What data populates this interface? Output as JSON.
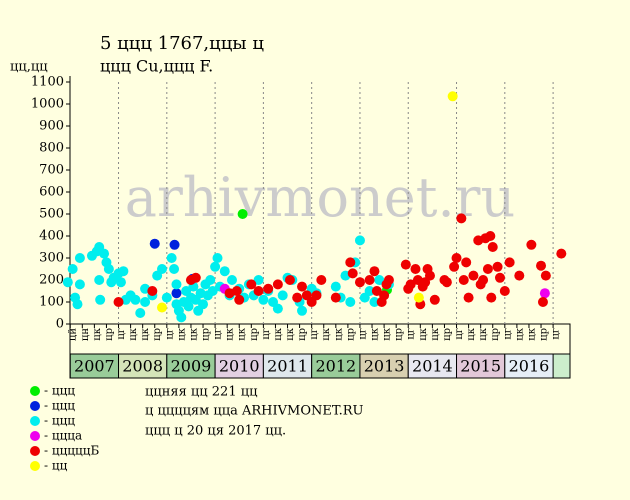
{
  "chart_data": {
    "type": "scatter",
    "title": "5 ццц 1767,ццы ц",
    "subtitle": "ццц Cu,ццц F.",
    "y_label": "цц,цц",
    "watermark": "arhivmonet.ru",
    "xlim": [
      2006.85,
      2017.35
    ],
    "ylim": [
      0,
      1100
    ],
    "yticks": [
      0,
      100,
      200,
      300,
      400,
      500,
      600,
      700,
      800,
      900,
      1000,
      1100
    ],
    "xticks": [
      {
        "value": 2007.0,
        "label": "цй"
      },
      {
        "value": 2007.25,
        "label": "цн"
      },
      {
        "value": 2007.5,
        "label": "цк"
      },
      {
        "value": 2007.75,
        "label": "цр"
      },
      {
        "value": 2008.0,
        "label": "цг"
      },
      {
        "value": 2008.25,
        "label": "цк"
      },
      {
        "value": 2008.5,
        "label": "цк"
      },
      {
        "value": 2008.75,
        "label": "цр"
      },
      {
        "value": 2009.0,
        "label": "цг"
      },
      {
        "value": 2009.25,
        "label": "цк"
      },
      {
        "value": 2009.5,
        "label": "цк"
      },
      {
        "value": 2009.75,
        "label": "цр"
      },
      {
        "value": 2010.0,
        "label": "цг"
      },
      {
        "value": 2010.25,
        "label": "цк"
      },
      {
        "value": 2010.5,
        "label": "цк"
      },
      {
        "value": 2010.75,
        "label": "цр"
      },
      {
        "value": 2011.0,
        "label": "цг"
      },
      {
        "value": 2011.25,
        "label": "цк"
      },
      {
        "value": 2011.5,
        "label": "цк"
      },
      {
        "value": 2011.75,
        "label": "цр"
      },
      {
        "value": 2012.0,
        "label": "цг"
      },
      {
        "value": 2012.25,
        "label": "цк"
      },
      {
        "value": 2012.5,
        "label": "цк"
      },
      {
        "value": 2012.75,
        "label": "цр"
      },
      {
        "value": 2013.0,
        "label": "цг"
      },
      {
        "value": 2013.25,
        "label": "цк"
      },
      {
        "value": 2013.5,
        "label": "цк"
      },
      {
        "value": 2013.75,
        "label": "цр"
      },
      {
        "value": 2014.0,
        "label": "цг"
      },
      {
        "value": 2014.25,
        "label": "цк"
      },
      {
        "value": 2014.5,
        "label": "цк"
      },
      {
        "value": 2014.75,
        "label": "цр"
      },
      {
        "value": 2015.0,
        "label": "цг"
      },
      {
        "value": 2015.25,
        "label": "цк"
      },
      {
        "value": 2015.5,
        "label": "цк"
      },
      {
        "value": 2015.75,
        "label": "цр"
      },
      {
        "value": 2016.0,
        "label": "цг"
      },
      {
        "value": 2016.25,
        "label": "цк"
      },
      {
        "value": 2016.5,
        "label": "цк"
      },
      {
        "value": 2016.75,
        "label": "цр"
      },
      {
        "value": 2017.0,
        "label": "цг"
      }
    ],
    "year_bands": [
      {
        "label": "2007",
        "start": 2007,
        "end": 2008,
        "color": "#99cc99"
      },
      {
        "label": "2008",
        "start": 2008,
        "end": 2009,
        "color": "#d4e4b8"
      },
      {
        "label": "2009",
        "start": 2009,
        "end": 2010,
        "color": "#99cc99"
      },
      {
        "label": "2010",
        "start": 2010,
        "end": 2011,
        "color": "#e2d0e2"
      },
      {
        "label": "2011",
        "start": 2011,
        "end": 2012,
        "color": "#dfe8ec"
      },
      {
        "label": "2012",
        "start": 2012,
        "end": 2013,
        "color": "#99cc99"
      },
      {
        "label": "2013",
        "start": 2013,
        "end": 2014,
        "color": "#d8d0b0"
      },
      {
        "label": "2014",
        "start": 2014,
        "end": 2015,
        "color": "#e8e8f0"
      },
      {
        "label": "2015",
        "start": 2015,
        "end": 2016,
        "color": "#e2c8d8"
      },
      {
        "label": "2016",
        "start": 2016,
        "end": 2017,
        "color": "#e6eef6"
      }
    ],
    "series": [
      {
        "name": "- ццц",
        "color": "#00ee00",
        "x": [
          2010.57,
          2013.56
        ],
        "values": [
          500,
          155
        ]
      },
      {
        "name": "- ццц",
        "color": "#0022dd",
        "x": [
          2008.75,
          2009.16,
          2009.2,
          2009.53
        ],
        "values": [
          365,
          360,
          140,
          205
        ]
      },
      {
        "name": "- ццц",
        "color": "#00eeee",
        "x": [
          2006.95,
          2007.05,
          2007.1,
          2007.15,
          2007.2,
          2007.2,
          2007.45,
          2007.55,
          2007.6,
          2007.6,
          2007.62,
          2007.7,
          2007.75,
          2007.8,
          2007.85,
          2007.9,
          2008.0,
          2008.05,
          2008.1,
          2008.15,
          2008.25,
          2008.35,
          2008.45,
          2008.55,
          2008.55,
          2008.7,
          2008.8,
          2008.9,
          2009.0,
          2009.1,
          2009.15,
          2009.2,
          2009.2,
          2009.25,
          2009.3,
          2009.35,
          2009.4,
          2009.45,
          2009.5,
          2009.55,
          2009.6,
          2009.65,
          2009.7,
          2009.75,
          2009.8,
          2009.85,
          2009.9,
          2009.95,
          2010.0,
          2010.05,
          2010.1,
          2010.2,
          2010.3,
          2010.35,
          2010.5,
          2010.6,
          2010.7,
          2010.8,
          2010.9,
          2011.0,
          2011.1,
          2011.2,
          2011.3,
          2011.4,
          2011.5,
          2011.6,
          2011.75,
          2011.8,
          2012.0,
          2012.1,
          2012.5,
          2012.6,
          2012.7,
          2012.8,
          2012.9,
          2013.0,
          2013.1,
          2013.2,
          2013.3,
          2013.4,
          2013.6
        ],
        "values": [
          190,
          250,
          120,
          90,
          300,
          180,
          310,
          330,
          350,
          200,
          110,
          320,
          280,
          250,
          190,
          210,
          230,
          190,
          240,
          110,
          130,
          110,
          50,
          100,
          160,
          130,
          220,
          250,
          120,
          300,
          250,
          180,
          90,
          60,
          30,
          100,
          150,
          80,
          120,
          170,
          110,
          60,
          140,
          90,
          180,
          130,
          200,
          150,
          260,
          300,
          170,
          240,
          130,
          200,
          160,
          120,
          180,
          130,
          200,
          110,
          150,
          100,
          70,
          130,
          210,
          200,
          100,
          60,
          160,
          140,
          170,
          120,
          220,
          100,
          280,
          380,
          120,
          150,
          100,
          200,
          180
        ]
      },
      {
        "name": "- ццца",
        "color": "#ee00ee",
        "x": [
          2010.2,
          2016.83
        ],
        "values": [
          160,
          140
        ]
      },
      {
        "name": "- цццццБ",
        "color": "#ee0000",
        "x": [
          2008.0,
          2008.7,
          2009.5,
          2009.6,
          2010.3,
          2010.45,
          2010.5,
          2010.75,
          2010.9,
          2011.1,
          2011.3,
          2011.55,
          2011.7,
          2011.8,
          2011.9,
          2012.0,
          2012.1,
          2012.2,
          2012.5,
          2012.8,
          2012.85,
          2013.0,
          2013.2,
          2013.3,
          2013.35,
          2013.45,
          2013.5,
          2013.55,
          2013.6,
          2013.95,
          2014.0,
          2014.05,
          2014.15,
          2014.2,
          2014.25,
          2014.3,
          2014.35,
          2014.4,
          2014.45,
          2014.55,
          2014.75,
          2014.8,
          2014.95,
          2015.0,
          2015.1,
          2015.15,
          2015.2,
          2015.25,
          2015.35,
          2015.45,
          2015.5,
          2015.55,
          2015.6,
          2015.65,
          2015.7,
          2015.72,
          2015.75,
          2015.85,
          2015.9,
          2016.0,
          2016.1,
          2016.3,
          2016.55,
          2016.75,
          2016.79,
          2016.85,
          2017.17
        ],
        "values": [
          100,
          150,
          200,
          210,
          140,
          150,
          110,
          180,
          150,
          160,
          180,
          200,
          120,
          170,
          130,
          100,
          130,
          200,
          120,
          280,
          230,
          190,
          200,
          240,
          150,
          100,
          130,
          180,
          200,
          270,
          160,
          180,
          250,
          200,
          90,
          170,
          190,
          250,
          220,
          110,
          200,
          190,
          260,
          300,
          480,
          200,
          280,
          120,
          220,
          380,
          180,
          200,
          390,
          250,
          400,
          120,
          350,
          260,
          210,
          150,
          280,
          220,
          360,
          265,
          100,
          220,
          320
        ]
      },
      {
        "name": "- цц",
        "color": "#ffff00",
        "x": [
          2008.9,
          2014.92,
          2014.22
        ],
        "values": [
          75,
          1035,
          120
        ]
      }
    ],
    "notes": [
      "ццняя цц 221 цц",
      "ц ццццям цца ARHIVMONET.RU",
      "ццц ц 20 ця 2017 цц."
    ]
  }
}
